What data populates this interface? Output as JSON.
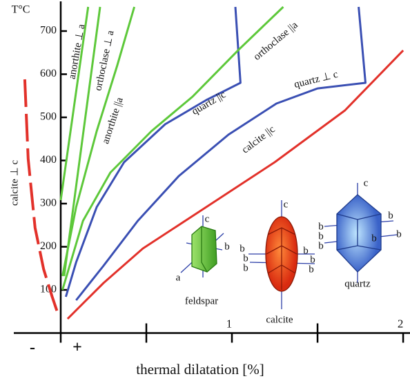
{
  "chart_data": {
    "type": "line",
    "xlabel": "thermal dilatation [%]",
    "ylabel": "T°C",
    "xlim": [
      -0.27,
      2.04
    ],
    "ylim": [
      0,
      760
    ],
    "xticks": [
      1,
      2
    ],
    "minor_xticks": [
      0.5,
      1.5
    ],
    "yticks": [
      100,
      200,
      300,
      400,
      500,
      600,
      700
    ],
    "annotations": [
      "-",
      "+"
    ],
    "series": [
      {
        "name": "calcite ⊥ c",
        "color": "#e2312a",
        "dash": true,
        "x": [
          -0.21,
          -0.19,
          -0.15,
          -0.1,
          -0.05,
          -0.02
        ],
        "y": [
          588,
          404,
          244,
          148,
          84,
          49
        ]
      },
      {
        "name": "calcite ||c",
        "color": "#e2312a",
        "dash": false,
        "x": [
          0.04,
          0.25,
          0.48,
          0.85,
          1.25,
          1.66,
          2.0
        ],
        "y": [
          33,
          116,
          196,
          292,
          396,
          516,
          655
        ]
      },
      {
        "name": "quartz ||c",
        "color": "#3a4fb3",
        "dash": false,
        "x": [
          0.03,
          0.09,
          0.21,
          0.37,
          0.61,
          0.85,
          1.05,
          1.02
        ],
        "y": [
          84,
          164,
          292,
          396,
          484,
          540,
          580,
          756
        ]
      },
      {
        "name": "quartz ⊥ c",
        "color": "#3a4fb3",
        "dash": false,
        "x": [
          0.09,
          0.25,
          0.45,
          0.69,
          0.98,
          1.26,
          1.5,
          1.78,
          1.74
        ],
        "y": [
          76,
          156,
          260,
          364,
          460,
          532,
          567,
          580,
          756
        ]
      },
      {
        "name": "orthoclase ||a",
        "color": "#5dc83a",
        "dash": false,
        "x": [
          0.01,
          0.13,
          0.29,
          0.53,
          0.77,
          1.04,
          1.3
        ],
        "y": [
          100,
          260,
          372,
          468,
          548,
          657,
          756
        ]
      },
      {
        "name": "anorthite ⊥ a",
        "color": "#5dc83a",
        "dash": false,
        "x": [
          0,
          0.16
        ],
        "y": [
          308,
          756
        ]
      },
      {
        "name": "orthoclase ⊥ a",
        "color": "#5dc83a",
        "dash": false,
        "x": [
          0.02,
          0.23
        ],
        "y": [
          132,
          756
        ]
      },
      {
        "name": "anorthite ||a",
        "color": "#5dc83a",
        "dash": false,
        "x": [
          0.01,
          0.09,
          0.21,
          0.33,
          0.43
        ],
        "y": [
          132,
          292,
          468,
          620,
          756
        ]
      }
    ],
    "crystals": [
      {
        "name": "feldspar",
        "axes": [
          "c",
          "b",
          "a"
        ]
      },
      {
        "name": "calcite",
        "axes": [
          "c",
          "b",
          "b",
          "b",
          "b",
          "b",
          "b"
        ]
      },
      {
        "name": "quartz",
        "axes": [
          "c",
          "b",
          "b",
          "b",
          "b",
          "b",
          "b"
        ]
      }
    ]
  }
}
